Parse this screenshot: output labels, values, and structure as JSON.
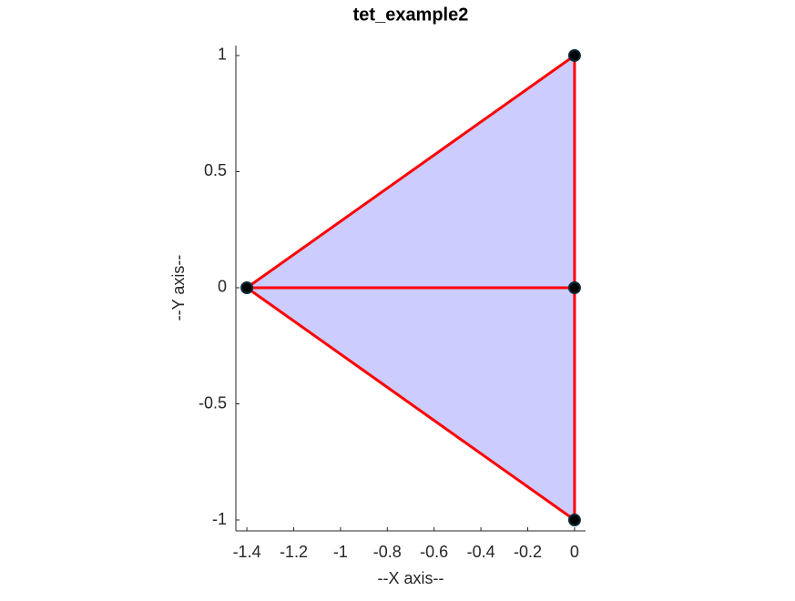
{
  "chart_data": {
    "type": "mesh",
    "title": "tet_example2",
    "xlabel": "--X axis--",
    "ylabel": "--Y axis--",
    "x": [
      0,
      0,
      -1.4,
      0
    ],
    "y": [
      1,
      0,
      0,
      -1
    ],
    "faces": [
      [
        2,
        0,
        1
      ],
      [
        2,
        1,
        3
      ]
    ],
    "edges": [
      [
        2,
        0
      ],
      [
        0,
        1
      ],
      [
        1,
        3
      ],
      [
        3,
        2
      ],
      [
        2,
        1
      ]
    ],
    "face_color": "#ccccff",
    "edge_color": "#ff0000",
    "marker_color": "#000000",
    "xlim": [
      -1.447,
      0.047
    ],
    "ylim": [
      -1.047,
      1.043
    ],
    "xticks": [
      -1.4,
      -1.2,
      -1,
      -0.8,
      -0.6,
      -0.4,
      -0.2,
      0
    ],
    "yticks": [
      -1,
      -0.5,
      0,
      0.5,
      1
    ]
  }
}
